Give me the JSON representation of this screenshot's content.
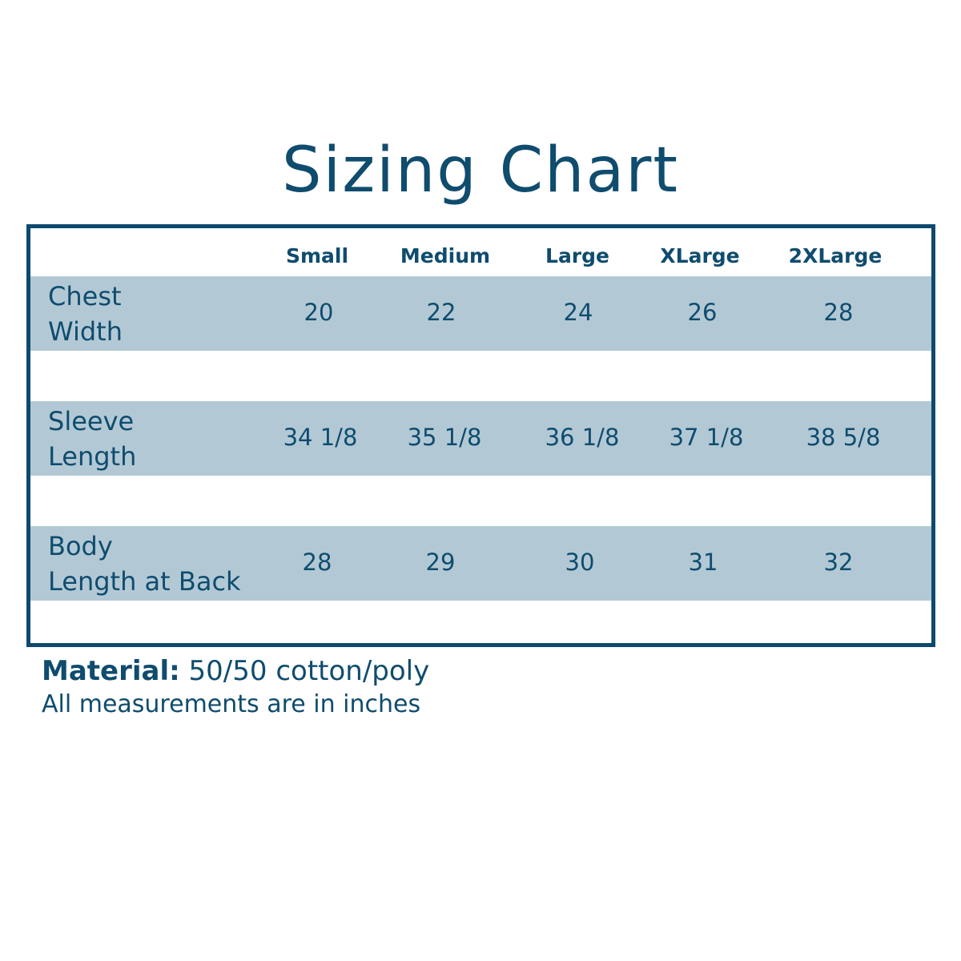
{
  "title": "Sizing Chart",
  "columns": [
    "Small",
    "Medium",
    "Large",
    "XLarge",
    "2XLarge"
  ],
  "rows": [
    {
      "label": "Chest\nWidth",
      "values": [
        "20",
        "22",
        "24",
        "26",
        "28"
      ]
    },
    {
      "label": "Sleeve\nLength",
      "values": [
        "34 1/8",
        "35 1/8",
        "36 1/8",
        "37 1/8",
        "38 5/8"
      ]
    },
    {
      "label": "Body\nLength at Back",
      "values": [
        "28",
        "29",
        "30",
        "31",
        "32"
      ]
    }
  ],
  "footer": {
    "material_label": "Material:",
    "material_value": "50/50 cotton/poly",
    "note": "All measurements are in inches"
  },
  "colors": {
    "primary": "#0f4c6e",
    "row_shade": "#b2c9d5",
    "border": "#0d4a6e"
  }
}
